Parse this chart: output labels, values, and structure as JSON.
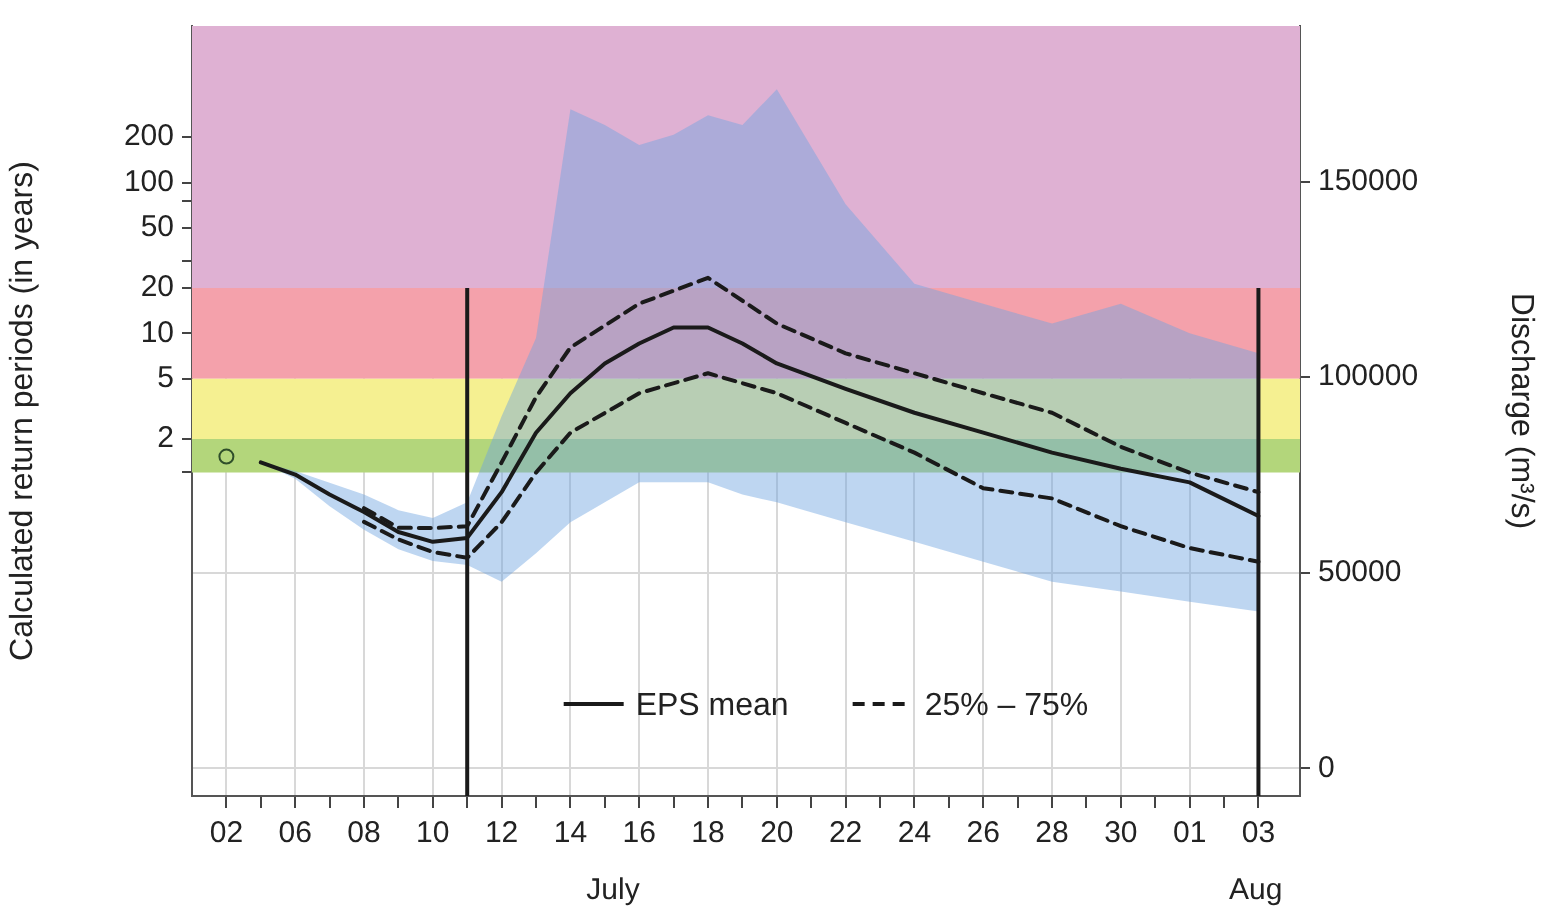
{
  "chart_data": {
    "type": "line",
    "ylabel": "Calculated return periods (in years)",
    "y2label": "Discharge (m³/s)",
    "xlim": [
      "--07-03",
      "--08-04T05:00"
    ],
    "xticks": [
      {
        "value": "--07-04",
        "label": "02"
      },
      {
        "value": "--07-05",
        "label": null
      },
      {
        "value": "--07-06",
        "label": "06"
      },
      {
        "value": "--07-07",
        "label": null
      },
      {
        "value": "--07-08",
        "label": "08"
      },
      {
        "value": "--07-09",
        "label": null
      },
      {
        "value": "--07-10",
        "label": "10"
      },
      {
        "value": "--07-11",
        "label": null
      },
      {
        "value": "--07-12",
        "label": "12"
      },
      {
        "value": "--07-13",
        "label": null
      },
      {
        "value": "--07-14",
        "label": "14"
      },
      {
        "value": "--07-15",
        "label": null
      },
      {
        "value": "--07-16",
        "label": "16"
      },
      {
        "value": "--07-17",
        "label": null
      },
      {
        "value": "--07-18",
        "label": "18"
      },
      {
        "value": "--07-19",
        "label": null
      },
      {
        "value": "--07-20",
        "label": "20"
      },
      {
        "value": "--07-21",
        "label": null
      },
      {
        "value": "--07-22",
        "label": "22"
      },
      {
        "value": "--07-23",
        "label": null
      },
      {
        "value": "--07-24",
        "label": "24"
      },
      {
        "value": "--07-25",
        "label": null
      },
      {
        "value": "--07-26",
        "label": "26"
      },
      {
        "value": "--07-27",
        "label": null
      },
      {
        "value": "--07-28",
        "label": "28"
      },
      {
        "value": "--07-29",
        "label": null
      },
      {
        "value": "--07-30",
        "label": "30"
      },
      {
        "value": "--07-31",
        "label": null
      },
      {
        "value": "--08-01",
        "label": "01"
      },
      {
        "value": "--08-02",
        "label": null
      },
      {
        "value": "--08-03",
        "label": "03"
      }
    ],
    "log": "y",
    "ylim": [
      0.0086,
      1090
    ],
    "yticks": [
      {
        "value": 1.2,
        "label": null
      },
      2,
      5,
      10,
      20,
      {
        "value": 30,
        "label": null
      },
      50,
      {
        "value": 75,
        "label": null
      },
      100,
      200
    ],
    "y2lim": [
      -7100,
      189800
    ],
    "y2ticks": [
      0,
      50000,
      100000,
      150000
    ],
    "grid": true,
    "legend": "bottom",
    "bands": [
      {
        "axis": "y",
        "from": 20,
        "to": 1090,
        "color": "#dfb1d3"
      },
      {
        "axis": "y",
        "from": 5,
        "to": 20,
        "color": "#f4a1ab"
      },
      {
        "axis": "y",
        "from": 2,
        "to": 5,
        "color": "#f5f091"
      },
      {
        "axis": "y",
        "from": 1.2,
        "to": 2,
        "color": "#b3d67b"
      }
    ],
    "ref_lines": [
      {
        "axis": "x",
        "value": "--07-11",
        "color": "#1a1a1a"
      },
      {
        "axis": "x",
        "value": "--08-03",
        "color": "#1a1a1a"
      }
    ],
    "series": [
      {
        "name": "EPS mean",
        "axis": "y2",
        "color": "#1a1a1a",
        "line_style": "solid",
        "marker": "none",
        "x": [
          "--07-05",
          "--07-06",
          "--07-07",
          "--07-08",
          "--07-09",
          "--07-10",
          "--07-11",
          "--07-12",
          "--07-13",
          "--07-14",
          "--07-15",
          "--07-16",
          "--07-17",
          "--07-18",
          "--07-19",
          "--07-20",
          "--07-22",
          "--07-24",
          "--07-26",
          "--07-28",
          "--07-30",
          "--08-01",
          "--08-03"
        ],
        "values": [
          78200,
          75100,
          70000,
          65500,
          60400,
          57900,
          58900,
          70600,
          85800,
          95900,
          103500,
          108600,
          112700,
          112700,
          108600,
          103500,
          97000,
          90900,
          85800,
          80700,
          76600,
          73100,
          64500
        ],
        "lower": [
          78200,
          74000,
          67000,
          61000,
          56000,
          53000,
          52000,
          47700,
          55000,
          62900,
          68000,
          73100,
          73100,
          73100,
          70000,
          68000,
          62900,
          57900,
          52800,
          47700,
          45200,
          42600,
          40100
        ],
        "upper": [
          78200,
          76000,
          73000,
          70000,
          66000,
          64000,
          68000,
          90000,
          110000,
          168500,
          164500,
          159400,
          162000,
          167000,
          164500,
          173600,
          144200,
          123900,
          118800,
          113700,
          118800,
          111200,
          106100
        ]
      },
      {
        "name": "25% – 75%",
        "axis": "y2",
        "color": "#1a1a1a",
        "line_style": "dashed",
        "marker": "none",
        "x": [
          "--07-08",
          "--07-09",
          "--07-10",
          "--07-11",
          "--07-12",
          "--07-13",
          "--07-14",
          "--07-16",
          "--07-18",
          "--07-20",
          "--07-22",
          "--07-24",
          "--07-26",
          "--07-28",
          "--07-30",
          "--08-01",
          "--08-03"
        ],
        "values": [
          63000,
          58500,
          55300,
          53800,
          62900,
          75600,
          85800,
          95900,
          101000,
          95900,
          88300,
          80700,
          71600,
          69000,
          61900,
          56300,
          52800
        ]
      },
      {
        "axis": "y2",
        "color": "#1a1a1a",
        "line_style": "dashed",
        "marker": "none",
        "x": [
          "--07-08",
          "--07-09",
          "--07-10",
          "--07-11",
          "--07-12",
          "--07-13",
          "--07-14",
          "--07-16",
          "--07-18",
          "--07-20",
          "--07-22",
          "--07-24",
          "--07-26",
          "--07-28",
          "--07-30",
          "--08-01",
          "--08-03"
        ],
        "values": [
          66500,
          61500,
          61400,
          61900,
          78200,
          94900,
          107600,
          118800,
          125400,
          113700,
          106100,
          101000,
          95900,
          90900,
          82200,
          75600,
          70600
        ]
      },
      {
        "type": "scatter",
        "axis": "y2",
        "color": "#2f4f2a",
        "marker": "circle",
        "x": [
          "--07-04"
        ],
        "values": [
          79700
        ]
      }
    ],
    "annotations": [
      "July",
      "Aug"
    ]
  }
}
